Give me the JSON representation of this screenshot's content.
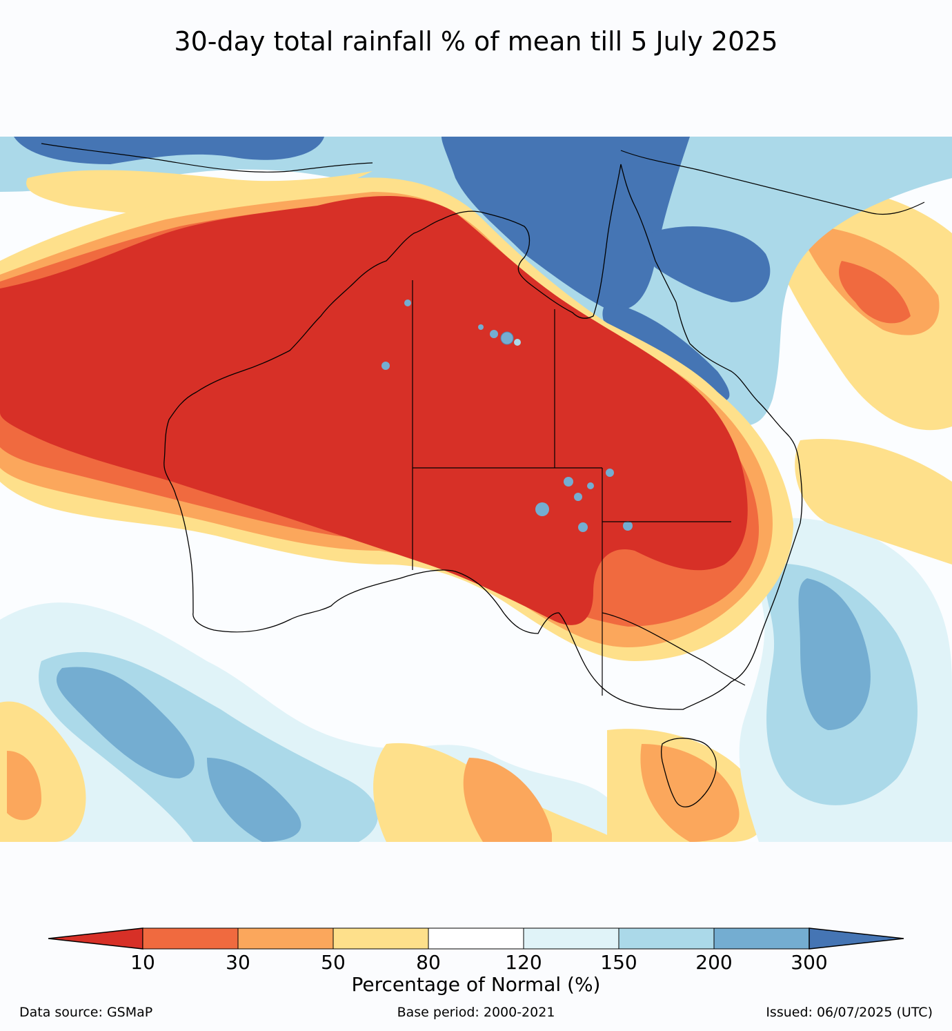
{
  "title": "30-day total rainfall % of mean till 5 July 2025",
  "colorbar": {
    "label": "Percentage of Normal (%)",
    "ticks": [
      "10",
      "30",
      "50",
      "80",
      "120",
      "150",
      "200",
      "300"
    ],
    "colors": [
      "#d73027",
      "#f06a3f",
      "#fba75c",
      "#fee08b",
      "#ffffff",
      "#e0f3f8",
      "#abd9e9",
      "#74add1",
      "#4575b4"
    ]
  },
  "footer": {
    "source": "Data source: GSMaP",
    "base": "Base period: 2000-2021",
    "issued": "Issued: 06/07/2025 (UTC)"
  }
}
